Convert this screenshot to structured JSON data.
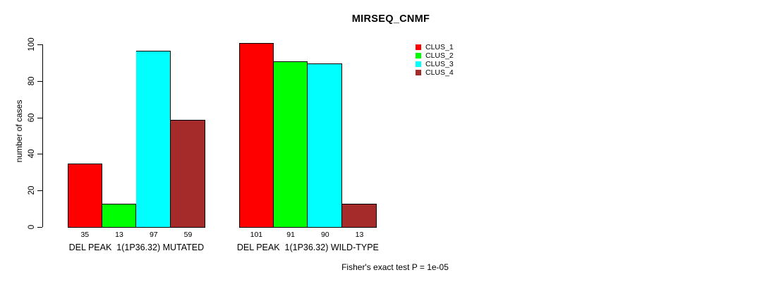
{
  "chart_data": {
    "type": "bar",
    "title": "MIRSEQ_CNMF",
    "ylabel": "number of cases",
    "xlabel": "",
    "ylim": [
      0,
      100
    ],
    "yticks": [
      0,
      20,
      40,
      60,
      80,
      100
    ],
    "grid": false,
    "legend_position": "top-right",
    "categories": [
      "DEL PEAK  1(1P36.32) MUTATED",
      "DEL PEAK  1(1P36.32) WILD-TYPE"
    ],
    "series": [
      {
        "name": "CLUS_1",
        "color": "#FF0000",
        "values": [
          35,
          101
        ]
      },
      {
        "name": "CLUS_2",
        "color": "#00FF00",
        "values": [
          13,
          91
        ]
      },
      {
        "name": "CLUS_3",
        "color": "#00FFFF",
        "values": [
          97,
          90
        ]
      },
      {
        "name": "CLUS_4",
        "color": "#A52A2A",
        "values": [
          59,
          13
        ]
      }
    ],
    "bar_value_labels": [
      [
        35,
        13,
        97,
        59
      ],
      [
        101,
        91,
        90,
        13
      ]
    ],
    "annotation": "Fisher's exact test P = 1e-05"
  }
}
